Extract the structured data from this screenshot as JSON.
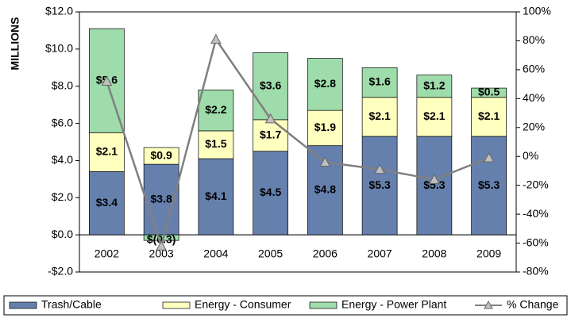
{
  "chart_data": {
    "type": "bar",
    "stacked": true,
    "y_label": "MILLIONS",
    "categories": [
      "2002",
      "2003",
      "2004",
      "2005",
      "2006",
      "2007",
      "2008",
      "2009"
    ],
    "series": [
      {
        "name": "Trash/Cable",
        "color": "#6580ad",
        "values": [
          3.4,
          3.8,
          4.1,
          4.5,
          4.8,
          5.3,
          5.3,
          5.3
        ],
        "value_labels": [
          "$3.4",
          "$3.8",
          "$4.1",
          "$4.5",
          "$4.8",
          "$5.3",
          "$5.3",
          "$5.3"
        ]
      },
      {
        "name": "Energy - Consumer",
        "color": "#ffffc0",
        "values": [
          2.1,
          0.9,
          1.5,
          1.7,
          1.9,
          2.1,
          2.1,
          2.1
        ],
        "value_labels": [
          "$2.1",
          "$0.9",
          "$1.5",
          "$1.7",
          "$1.9",
          "$2.1",
          "$2.1",
          "$2.1"
        ]
      },
      {
        "name": "Energy - Power Plant",
        "color": "#9edcab",
        "values": [
          5.6,
          -0.3,
          2.2,
          3.6,
          2.8,
          1.6,
          1.2,
          0.5
        ],
        "value_labels": [
          "$5.6",
          "$(0.3)",
          "$2.2",
          "$3.6",
          "$2.8",
          "$1.6",
          "$1.2",
          "$0.5"
        ]
      },
      {
        "name": "% Change",
        "type": "line",
        "axis": "y2",
        "color": "#808080",
        "values": [
          52,
          -62,
          81,
          26,
          -4,
          -9,
          -16,
          -1
        ]
      }
    ],
    "ylim": [
      -2,
      12
    ],
    "yticks": [
      {
        "value": -2,
        "label": "-$2.0"
      },
      {
        "value": 0,
        "label": "$0.0"
      },
      {
        "value": 2,
        "label": "$2.0"
      },
      {
        "value": 4,
        "label": "$4.0"
      },
      {
        "value": 6,
        "label": "$6.0"
      },
      {
        "value": 8,
        "label": "$8.0"
      },
      {
        "value": 10,
        "label": "$10.0"
      },
      {
        "value": 12,
        "label": "$12.0"
      }
    ],
    "y2lim": [
      -80,
      100
    ],
    "y2ticks": [
      {
        "value": -80,
        "label": "-80%"
      },
      {
        "value": -60,
        "label": "-60%"
      },
      {
        "value": -40,
        "label": "-40%"
      },
      {
        "value": -20,
        "label": "-20%"
      },
      {
        "value": 0,
        "label": "0%"
      },
      {
        "value": 20,
        "label": "20%"
      },
      {
        "value": 40,
        "label": "40%"
      },
      {
        "value": 60,
        "label": "60%"
      },
      {
        "value": 80,
        "label": "80%"
      },
      {
        "value": 100,
        "label": "100%"
      }
    ],
    "legend": "bottom"
  }
}
